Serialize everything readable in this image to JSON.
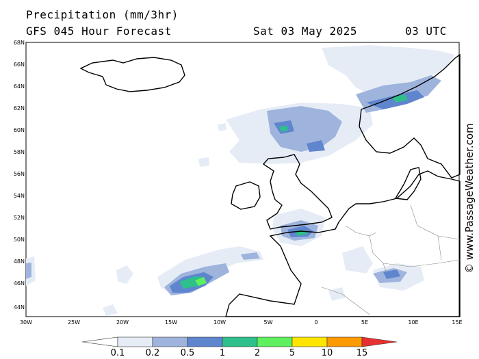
{
  "header": {
    "title": "Precipitation (mm/3hr)",
    "model": "GFS 045 Hour Forecast",
    "date": "Sat 03 May 2025",
    "time": "03 UTC"
  },
  "watermark": "© www.PassageWeather.com",
  "map": {
    "lat_labels": [
      "68N",
      "66N",
      "64N",
      "62N",
      "60N",
      "58N",
      "56N",
      "54N",
      "52N",
      "50N",
      "48N",
      "46N",
      "44N"
    ],
    "lon_labels": [
      "30W",
      "25W",
      "20W",
      "15W",
      "10W",
      "5W",
      "0",
      "5E",
      "10E",
      "15E"
    ],
    "region": "North Atlantic / North Sea / Western Europe"
  },
  "legend": {
    "labels": [
      "0.1",
      "0.2",
      "0.5",
      "1",
      "2",
      "5",
      "10",
      "15"
    ],
    "colors": [
      "#ffffff",
      "#e6ecf6",
      "#9fb4dc",
      "#5f85cf",
      "#2ebf8a",
      "#5ef05e",
      "#ffe600",
      "#ff9900",
      "#e83030"
    ]
  }
}
